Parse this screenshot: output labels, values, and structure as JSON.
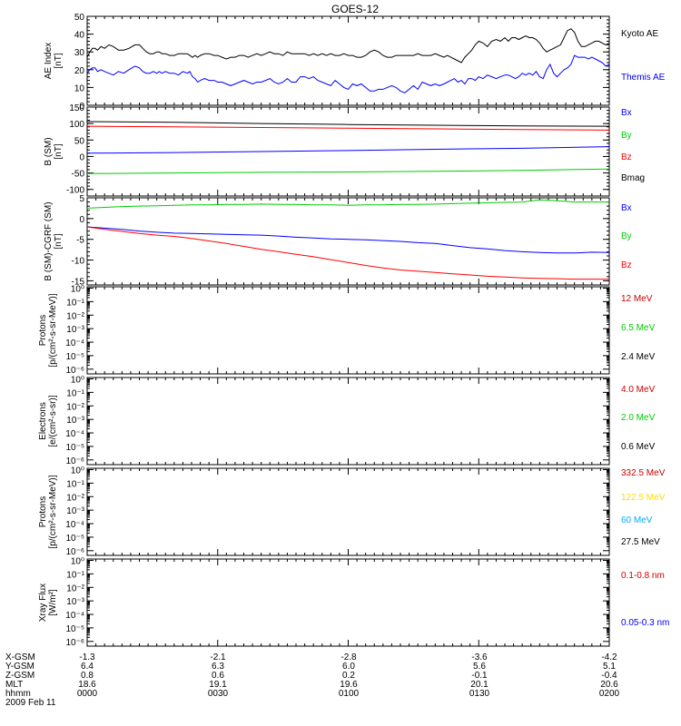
{
  "title": "GOES-12",
  "chart_data": [
    {
      "id": "ae",
      "type": "line",
      "ylabel": [
        "AE Index",
        "[nT]"
      ],
      "ylim": [
        0,
        50
      ],
      "yticks": [
        0,
        10,
        20,
        30,
        40,
        50
      ],
      "log": false,
      "series": [
        {
          "name": "Kyoto AE",
          "color": "#000000",
          "x": [
            0,
            3,
            6,
            9,
            12,
            16,
            20,
            25,
            30,
            36,
            42,
            48,
            55,
            60,
            64,
            68,
            72,
            76,
            80,
            83,
            86,
            90,
            95,
            100,
            105,
            110,
            115,
            118,
            121,
            124,
            127,
            130,
            135,
            140,
            146,
            150,
            155,
            160,
            165,
            170,
            175,
            180,
            185,
            190,
            195,
            200,
            205,
            210,
            215,
            220,
            225,
            230,
            235,
            240,
            245,
            250,
            255,
            260,
            265,
            270,
            275,
            280,
            285,
            290,
            295,
            300,
            305,
            310,
            315,
            320,
            325,
            330,
            335,
            340,
            345,
            350,
            355,
            360,
            365,
            370,
            375,
            380,
            385,
            390,
            395,
            400,
            405,
            410,
            414,
            418,
            422,
            426,
            430,
            434,
            438,
            442,
            446,
            450,
            455,
            460,
            465,
            470,
            475,
            480,
            484,
            488,
            492,
            496,
            500,
            504,
            508,
            512,
            516,
            520,
            524,
            528,
            532,
            536,
            540,
            544,
            548,
            552,
            556,
            560,
            564,
            568,
            572,
            576,
            580,
            584,
            588,
            592,
            596,
            600
          ],
          "y": [
            27,
            30,
            32,
            32,
            31,
            33,
            32,
            34,
            33,
            31,
            31,
            32,
            34,
            34,
            32,
            30,
            29,
            29,
            30,
            30,
            29,
            29,
            28,
            28,
            29,
            29,
            29,
            28,
            27,
            28,
            27,
            28,
            29,
            29,
            28,
            28,
            27,
            26,
            27,
            27,
            28,
            28,
            27,
            28,
            29,
            28,
            29,
            30,
            29,
            29,
            28,
            30,
            29,
            29,
            29,
            29,
            28,
            29,
            28,
            29,
            28,
            29,
            28,
            28,
            29,
            28,
            28,
            27,
            27,
            28,
            30,
            31,
            30,
            28,
            27,
            27,
            28,
            28,
            28,
            28,
            28,
            29,
            28,
            28,
            28,
            29,
            28,
            27,
            28,
            27,
            26,
            25,
            24,
            27,
            29,
            31,
            34,
            36,
            35,
            33,
            36,
            37,
            36,
            38,
            36,
            38,
            38,
            37,
            38,
            39,
            38,
            38,
            37,
            35,
            32,
            30,
            31,
            32,
            33,
            34,
            38,
            42,
            43,
            41,
            36,
            33,
            33,
            34,
            35,
            36,
            36,
            35,
            34,
            35
          ]
        },
        {
          "name": "Themis AE",
          "color": "#0000ff",
          "x": [
            0,
            3,
            6,
            9,
            12,
            16,
            20,
            25,
            30,
            36,
            42,
            48,
            55,
            60,
            64,
            68,
            72,
            76,
            80,
            83,
            86,
            90,
            95,
            100,
            105,
            110,
            115,
            118,
            121,
            124,
            127,
            130,
            135,
            140,
            146,
            150,
            155,
            160,
            165,
            170,
            175,
            180,
            185,
            190,
            195,
            200,
            205,
            210,
            215,
            220,
            225,
            230,
            235,
            240,
            245,
            250,
            255,
            260,
            265,
            270,
            275,
            280,
            285,
            290,
            295,
            300,
            305,
            310,
            315,
            320,
            325,
            330,
            335,
            340,
            345,
            350,
            355,
            360,
            365,
            370,
            375,
            380,
            385,
            390,
            395,
            400,
            405,
            410,
            414,
            418,
            422,
            426,
            430,
            434,
            438,
            442,
            446,
            450,
            455,
            460,
            465,
            470,
            475,
            480,
            484,
            488,
            492,
            496,
            500,
            504,
            508,
            512,
            516,
            520,
            524,
            528,
            532,
            536,
            540,
            544,
            548,
            552,
            556,
            560,
            564,
            568,
            572,
            576,
            580,
            584,
            588,
            592,
            596,
            600
          ],
          "y": [
            18,
            20,
            21,
            21,
            19,
            20,
            19,
            18,
            17,
            19,
            18,
            20,
            22,
            21,
            19,
            18,
            18,
            19,
            18,
            19,
            18,
            19,
            18,
            18,
            17,
            19,
            18,
            19,
            16,
            15,
            13,
            14,
            15,
            14,
            14,
            13,
            13,
            12,
            11,
            12,
            13,
            14,
            13,
            12,
            13,
            13,
            14,
            15,
            13,
            12,
            13,
            15,
            13,
            13,
            16,
            16,
            15,
            16,
            14,
            13,
            12,
            11,
            14,
            12,
            10,
            9,
            12,
            11,
            12,
            10,
            8,
            8,
            9,
            9,
            10,
            11,
            10,
            8,
            7,
            9,
            11,
            9,
            13,
            12,
            11,
            12,
            11,
            12,
            13,
            14,
            15,
            13,
            14,
            12,
            15,
            15,
            14,
            16,
            15,
            17,
            16,
            15,
            16,
            17,
            17,
            16,
            15,
            16,
            18,
            17,
            18,
            17,
            19,
            16,
            15,
            20,
            23,
            18,
            16,
            18,
            20,
            21,
            23,
            28,
            27,
            27,
            27,
            26,
            27,
            26,
            25,
            24,
            22,
            23
          ]
        }
      ]
    },
    {
      "id": "bsm",
      "type": "line",
      "ylabel": [
        "B (SM)",
        "[nT]"
      ],
      "ylim": [
        -120,
        150
      ],
      "yticks": [
        -100,
        -50,
        0,
        50,
        100,
        150
      ],
      "log": false,
      "series": [
        {
          "name": "Bx",
          "color": "#0000ff",
          "x": [
            0,
            100,
            200,
            300,
            400,
            500,
            600
          ],
          "y": [
            10,
            12,
            15,
            18,
            22,
            25,
            30
          ]
        },
        {
          "name": "By",
          "color": "#00cc00",
          "x": [
            0,
            100,
            200,
            300,
            400,
            500,
            600
          ],
          "y": [
            -52,
            -50,
            -48,
            -47,
            -45,
            -42,
            -38
          ]
        },
        {
          "name": "Bz",
          "color": "#ff0000",
          "x": [
            0,
            100,
            200,
            300,
            400,
            500,
            600
          ],
          "y": [
            92,
            90,
            88,
            86,
            84,
            82,
            80
          ]
        },
        {
          "name": "Bmag",
          "color": "#000000",
          "x": [
            0,
            100,
            200,
            300,
            400,
            500,
            600
          ],
          "y": [
            106,
            104,
            100,
            97,
            95,
            93,
            92
          ]
        }
      ]
    },
    {
      "id": "bdiff",
      "type": "line",
      "ylabel": [
        "B (SM)-CGRF (SM)",
        "[nT]"
      ],
      "ylim": [
        -16,
        5
      ],
      "yticks": [
        -15,
        -10,
        -5,
        0,
        5
      ],
      "log": false,
      "series": [
        {
          "name": "Bx",
          "color": "#0000ff",
          "x": [
            0,
            20,
            40,
            60,
            80,
            100,
            120,
            140,
            160,
            180,
            200,
            220,
            240,
            260,
            280,
            300,
            320,
            340,
            360,
            380,
            400,
            420,
            440,
            460,
            480,
            500,
            520,
            540,
            560,
            580,
            600
          ],
          "y": [
            -2,
            -2.3,
            -2.6,
            -3,
            -3.3,
            -3.5,
            -3.6,
            -3.7,
            -3.8,
            -3.9,
            -4,
            -4.2,
            -4.5,
            -4.7,
            -4.9,
            -5,
            -5.1,
            -5.3,
            -5.5,
            -5.8,
            -6,
            -6.5,
            -7,
            -7.3,
            -7.7,
            -8,
            -8.2,
            -8.3,
            -8.3,
            -8.1,
            -8.2
          ]
        },
        {
          "name": "By",
          "color": "#00cc00",
          "x": [
            0,
            20,
            40,
            60,
            80,
            100,
            120,
            140,
            160,
            180,
            200,
            220,
            240,
            260,
            280,
            300,
            320,
            340,
            360,
            380,
            400,
            420,
            440,
            460,
            480,
            500,
            520,
            540,
            560,
            580,
            600
          ],
          "y": [
            2.5,
            2.7,
            2.9,
            3,
            3.1,
            3.2,
            3.3,
            3.3,
            3.4,
            3.4,
            3.5,
            3.4,
            3.4,
            3.3,
            3.3,
            3.2,
            3.3,
            3.3,
            3.4,
            3.4,
            3.5,
            3.6,
            3.7,
            3.8,
            3.9,
            4,
            4.5,
            4.3,
            4,
            4,
            4
          ]
        },
        {
          "name": "Bz",
          "color": "#ff0000",
          "x": [
            0,
            20,
            40,
            60,
            80,
            100,
            120,
            140,
            160,
            180,
            200,
            220,
            240,
            260,
            280,
            300,
            320,
            340,
            360,
            380,
            400,
            420,
            440,
            460,
            480,
            500,
            520,
            540,
            560,
            580,
            600
          ],
          "y": [
            -2,
            -2.6,
            -3.1,
            -3.6,
            -4,
            -4.3,
            -4.8,
            -5.4,
            -6,
            -6.7,
            -7.4,
            -8,
            -8.6,
            -9.2,
            -9.9,
            -10.6,
            -11.3,
            -11.9,
            -12.4,
            -12.7,
            -13,
            -13.3,
            -13.6,
            -13.9,
            -14.1,
            -14.3,
            -14.4,
            -14.5,
            -14.6,
            -14.6,
            -14.6
          ]
        }
      ]
    },
    {
      "id": "protons1",
      "type": "line",
      "ylabel": [
        "Protons",
        "[p/(cm²-s-sr-MeV)]"
      ],
      "log": true,
      "ymin_exp": -6,
      "ymax_exp": 0,
      "yticks": [
        -6,
        -5,
        -4,
        -3,
        -2,
        -1,
        0
      ],
      "series": [
        {
          "name": "12 MeV",
          "color": "#cc0000",
          "x": [],
          "y": []
        },
        {
          "name": "6.5 MeV",
          "color": "#00cc00",
          "x": [],
          "y": []
        },
        {
          "name": "2.4 MeV",
          "color": "#000000",
          "x": [],
          "y": []
        }
      ]
    },
    {
      "id": "electrons",
      "type": "line",
      "ylabel": [
        "Electrons",
        "[e/(cm²-s-sr)]"
      ],
      "log": true,
      "ymin_exp": -6,
      "ymax_exp": 0,
      "yticks": [
        -6,
        -5,
        -4,
        -3,
        -2,
        -1,
        0
      ],
      "series": [
        {
          "name": "4.0 MeV",
          "color": "#cc0000",
          "x": [],
          "y": []
        },
        {
          "name": "2.0 MeV",
          "color": "#00cc00",
          "x": [],
          "y": []
        },
        {
          "name": "0.6 MeV",
          "color": "#000000",
          "x": [],
          "y": []
        }
      ]
    },
    {
      "id": "protons2",
      "type": "line",
      "ylabel": [
        "Protons",
        "[p/(cm²-s-sr-MeV)]"
      ],
      "log": true,
      "ymin_exp": -6,
      "ymax_exp": 0,
      "yticks": [
        -6,
        -5,
        -4,
        -3,
        -2,
        -1,
        0
      ],
      "series": [
        {
          "name": "332.5 MeV",
          "color": "#cc0000",
          "x": [],
          "y": []
        },
        {
          "name": "122.5 MeV",
          "color": "#ffdd00",
          "x": [],
          "y": []
        },
        {
          "name": "60 MeV",
          "color": "#00aaff",
          "x": [],
          "y": []
        },
        {
          "name": "27.5 MeV",
          "color": "#000000",
          "x": [],
          "y": []
        }
      ]
    },
    {
      "id": "xray",
      "type": "line",
      "ylabel": [
        "Xray Flux",
        "[W/m²]"
      ],
      "log": true,
      "ymin_exp": -6,
      "ymax_exp": 0,
      "yticks": [
        -6,
        -5,
        -4,
        -3,
        -2,
        -1,
        0
      ],
      "series": [
        {
          "name": "0.1-0.8 nm",
          "color": "#cc0000",
          "x": [],
          "y": []
        },
        {
          "name": "0.05-0.3 nm",
          "color": "#0000ff",
          "x": [],
          "y": []
        }
      ]
    }
  ],
  "x_axis": {
    "row_labels": [
      "X-GSM",
      "Y-GSM",
      "Z-GSM",
      "MLT",
      "hhmm"
    ],
    "columns": [
      [
        "-1.3",
        "6.4",
        "0.8",
        "18.6",
        "0000"
      ],
      [
        "-2.1",
        "6.3",
        "0.6",
        "19.1",
        "0030"
      ],
      [
        "-2.8",
        "6.0",
        "0.2",
        "19.6",
        "0100"
      ],
      [
        "-3.6",
        "5.6",
        "-0.1",
        "20.1",
        "0130"
      ],
      [
        "-4.2",
        "5.1",
        "-0.4",
        "20.6",
        "0200"
      ]
    ],
    "date": "2009 Feb 11"
  }
}
